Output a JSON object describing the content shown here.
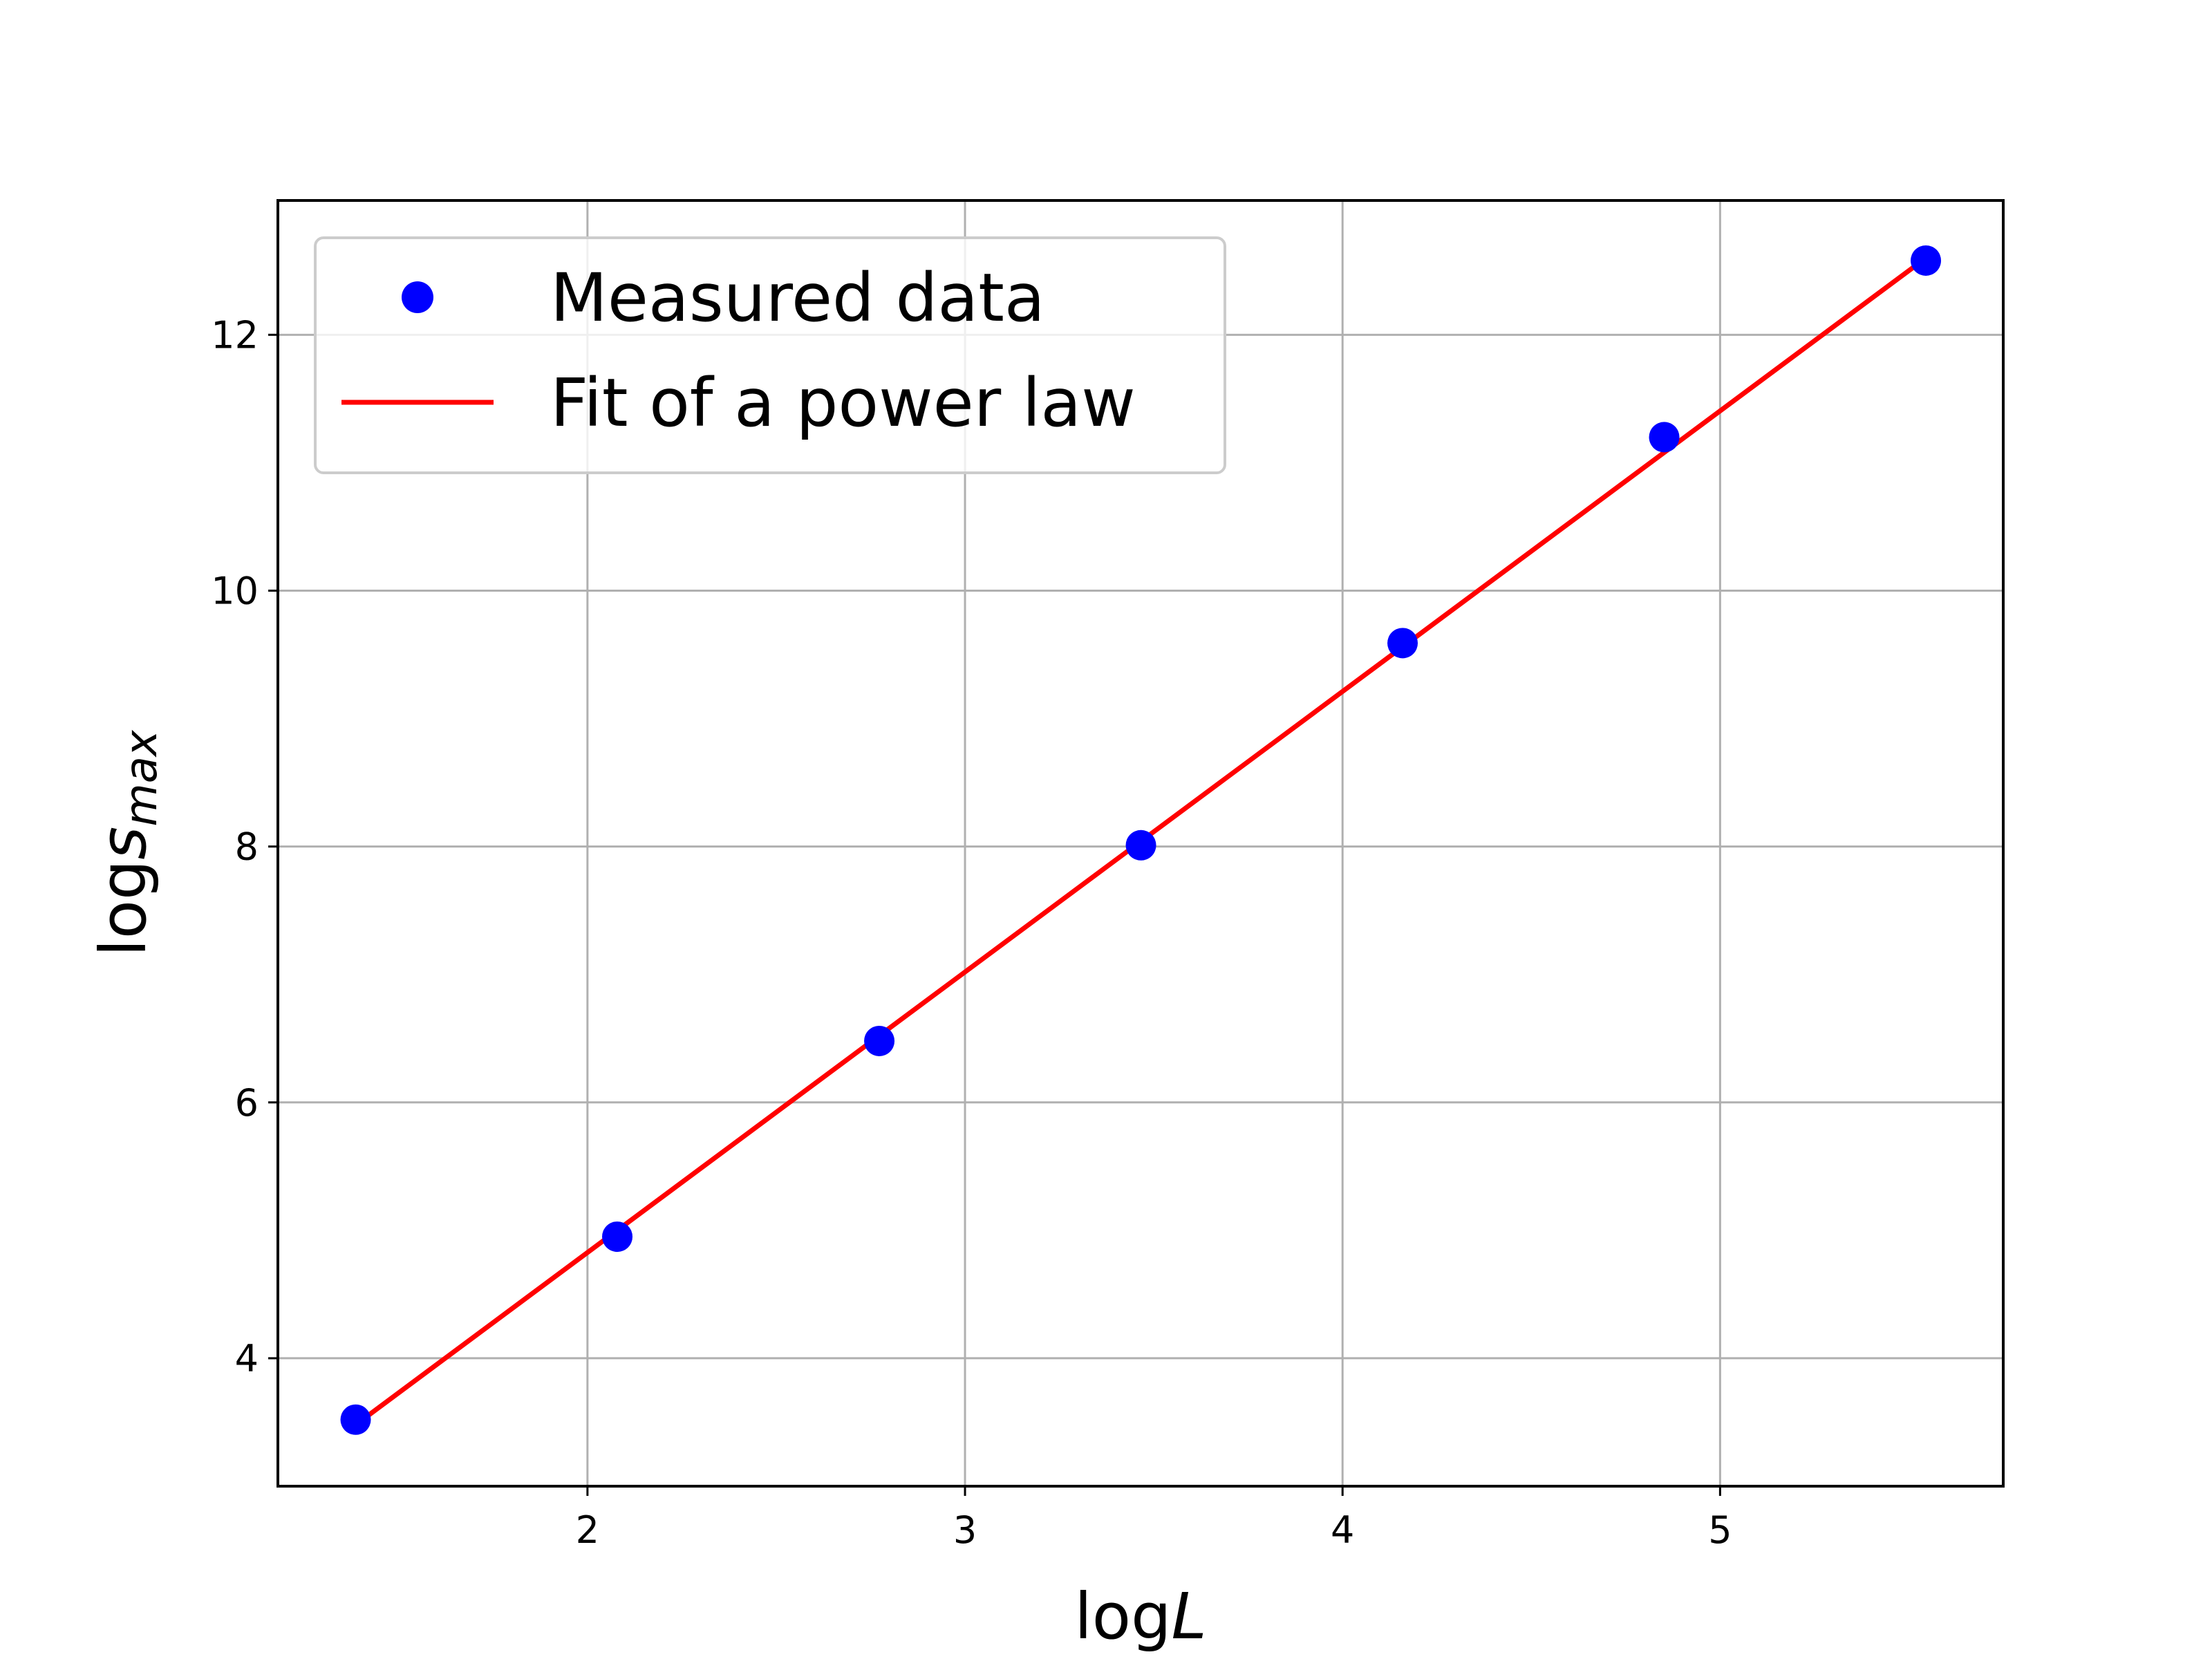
{
  "chart_data": {
    "type": "scatter",
    "xlabel": {
      "prefix": "log",
      "var": "L"
    },
    "ylabel": {
      "prefix": "log",
      "var": "s",
      "sub": "max"
    },
    "xlim": [
      1.18,
      5.75
    ],
    "ylim": [
      3.0,
      13.05
    ],
    "x_ticks": [
      2,
      3,
      4,
      5
    ],
    "y_ticks": [
      4,
      6,
      8,
      10,
      12
    ],
    "grid": true,
    "legend_position": "upper left",
    "series": [
      {
        "name": "Measured data",
        "kind": "points",
        "color": "#0000ff",
        "x": [
          1.386,
          2.079,
          2.773,
          3.466,
          4.159,
          4.852,
          5.545
        ],
        "y": [
          3.52,
          4.95,
          6.48,
          8.01,
          9.59,
          11.2,
          12.58
        ]
      },
      {
        "name": "Fit of a power law",
        "kind": "line",
        "color": "#ff0000",
        "x": [
          1.386,
          5.545
        ],
        "y": [
          3.48,
          12.6
        ]
      }
    ]
  }
}
